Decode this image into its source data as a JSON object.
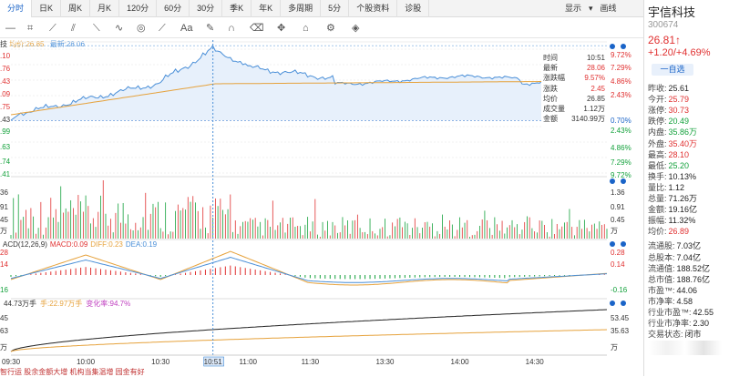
{
  "tabs": [
    "分时",
    "日K",
    "周K",
    "月K",
    "120分",
    "60分",
    "30分",
    "季K",
    "年K",
    "多周期",
    "5分",
    "个股资料",
    "诊股"
  ],
  "top_right": {
    "display": "显示",
    "draw": "画线"
  },
  "legend": {
    "avg": "均价:26.85",
    "latest": "最新:28.06"
  },
  "price_axis_left": [
    "0.10",
    "8.76",
    "7.43",
    "6.09",
    "4.75",
    "3.43",
    "1.99",
    "0.63",
    "9.74",
    "8.41"
  ],
  "price_axis_left_top": ".10",
  "pct_axis_right": [
    "9.72%",
    "7.29%",
    "4.86%",
    "2.43%",
    "0.70%",
    "2.43%",
    "4.86%",
    "7.29%",
    "9.72%"
  ],
  "info": [
    {
      "k": "时间",
      "v": "10:51"
    },
    {
      "k": "最新",
      "v": "28.06"
    },
    {
      "k": "涨跌幅",
      "v": "9.57%"
    },
    {
      "k": "涨跌",
      "v": "2.45"
    },
    {
      "k": "均价",
      "v": "26.85"
    },
    {
      "k": "成交量",
      "v": "1.12万"
    },
    {
      "k": "金额",
      "v": "3140.99万"
    }
  ],
  "vol_left": [
    "36",
    "91",
    "45",
    "万"
  ],
  "vol_right": [
    "1.36",
    "0.91",
    "0.45",
    "万"
  ],
  "macd_legend": {
    "title": "ACD(12,26,9)",
    "macd": "MACD:0.09",
    "diff": "DIFF:0.23",
    "dea": "DEA:0.19"
  },
  "macd_left": [
    "28",
    "14",
    "16"
  ],
  "macd_right": [
    "0.28",
    "0.14",
    "-0.16"
  ],
  "vol3_legend": {
    "a": "44.73万手",
    "b": "手:22.97万手",
    "c": "变化率:94.7%"
  },
  "vol3_left": [
    "45",
    "63",
    "万"
  ],
  "vol3_right": [
    "53.45",
    "35.63",
    "万"
  ],
  "xaxis": [
    "09:30",
    "10:00",
    "10:30",
    "10:51",
    "11:00",
    "11:30",
    "13:30",
    "14:00",
    "14:30"
  ],
  "bottom": "智行运 股余金额大增 机构当集温增 园金有好",
  "stock": {
    "name": "宇信科技",
    "code": "300674",
    "price": "26.81↑",
    "change": "+1.20/+4.69%",
    "add": "一自选"
  },
  "stats": [
    {
      "k": "昨收:",
      "v": "25.61",
      "c": "black"
    },
    {
      "k": "今开:",
      "v": "25.79",
      "c": "red"
    },
    {
      "k": "涨停:",
      "v": "30.73",
      "c": "red"
    },
    {
      "k": "跌停:",
      "v": "20.49",
      "c": "green"
    },
    {
      "k": "内盘:",
      "v": "35.86万",
      "c": "green"
    },
    {
      "k": "外盘:",
      "v": "35.40万",
      "c": "red"
    },
    {
      "k": "最高:",
      "v": "28.10",
      "c": "red"
    },
    {
      "k": "最低:",
      "v": "25.20",
      "c": "green"
    },
    {
      "k": "换手:",
      "v": "10.13%",
      "c": "black"
    },
    {
      "k": "量比:",
      "v": "1.12",
      "c": "black"
    },
    {
      "k": "总量:",
      "v": "71.26万",
      "c": "black"
    },
    {
      "k": "金额:",
      "v": "19.16亿",
      "c": "black"
    },
    {
      "k": "振幅:",
      "v": "11.32%",
      "c": "black"
    },
    {
      "k": "均价:",
      "v": "26.89",
      "c": "red"
    },
    {
      "k": "流通股:",
      "v": "7.03亿",
      "c": "black"
    },
    {
      "k": "总股本:",
      "v": "7.04亿",
      "c": "black"
    },
    {
      "k": "流通值:",
      "v": "188.52亿",
      "c": "black"
    },
    {
      "k": "总市值:",
      "v": "188.76亿",
      "c": "black"
    },
    {
      "k": "市盈™:",
      "v": "44.06",
      "c": "black"
    },
    {
      "k": "市净率:",
      "v": "4.58",
      "c": "black"
    },
    {
      "k": "行业市盈™:",
      "v": "42.55",
      "c": "black"
    },
    {
      "k": "行业市净率:",
      "v": "2.30",
      "c": "black"
    },
    {
      "k": "交易状态:",
      "v": "闭市",
      "c": "black"
    }
  ],
  "colors": {
    "red": "#e03030",
    "green": "#13a13b",
    "blue": "#1a64c8",
    "price": "#4a8fd8",
    "avg": "#e6a23c"
  }
}
